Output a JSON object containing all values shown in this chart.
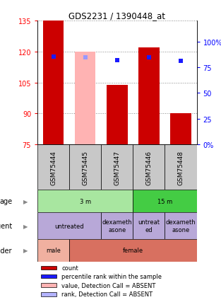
{
  "title": "GDS2231 / 1390448_at",
  "samples": [
    "GSM75444",
    "GSM75445",
    "GSM75447",
    "GSM75446",
    "GSM75448"
  ],
  "ylim": [
    75,
    135
  ],
  "yticks_left": [
    75,
    90,
    105,
    120,
    135
  ],
  "yticks_right_labels": [
    "0%",
    "25",
    "50",
    "75",
    "100%"
  ],
  "yticks_right_vals": [
    75,
    87.5,
    100,
    112.5,
    125
  ],
  "bar_bottoms": [
    75,
    75,
    75,
    75,
    75
  ],
  "bar_heights": [
    60,
    45,
    29,
    47,
    15
  ],
  "bar_colors": [
    "#cc0000",
    "#ffb3b3",
    "#cc0000",
    "#cc0000",
    "#cc0000"
  ],
  "dot_x": [
    0,
    1,
    2,
    3,
    4
  ],
  "dot_y": [
    117.5,
    117.2,
    116.0,
    117.2,
    115.5
  ],
  "dot_colors": [
    "#1a1aff",
    "#9999ff",
    "#1a1aff",
    "#1a1aff",
    "#1a1aff"
  ],
  "age_spans": [
    [
      0,
      3,
      "3 m",
      "#a8e6a0"
    ],
    [
      3,
      5,
      "15 m",
      "#44cc44"
    ]
  ],
  "agent_spans": [
    [
      0,
      2,
      "untreated",
      "#b8a8d8"
    ],
    [
      2,
      3,
      "dexameth\nasone",
      "#b8a8d8"
    ],
    [
      3,
      4,
      "untreat\ned",
      "#b8a8d8"
    ],
    [
      4,
      5,
      "dexameth\nasone",
      "#b8a8d8"
    ]
  ],
  "gender_spans": [
    [
      0,
      1,
      "male",
      "#f0b0a0"
    ],
    [
      1,
      5,
      "female",
      "#d87060"
    ]
  ],
  "legend_items": [
    {
      "color": "#cc0000",
      "label": "count"
    },
    {
      "color": "#1a1aff",
      "label": "percentile rank within the sample"
    },
    {
      "color": "#ffb3b3",
      "label": "value, Detection Call = ABSENT"
    },
    {
      "color": "#b3b3ff",
      "label": "rank, Detection Call = ABSENT"
    }
  ],
  "metadata_labels": [
    "age",
    "agent",
    "gender"
  ],
  "bg_color": "#ffffff",
  "grid_color": "#888888",
  "sample_box_color": "#c8c8c8"
}
